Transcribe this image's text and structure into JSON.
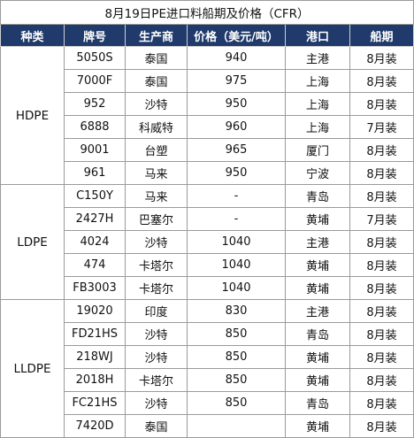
{
  "title": "8月19日PE进口料船期及价格（CFR）",
  "headers": [
    "种类",
    "牌号",
    "生产商",
    "价格（美元/吨）",
    "港口",
    "船期"
  ],
  "groups": [
    {
      "category": "HDPE",
      "rows": [
        {
          "grade": "5050S",
          "producer": "泰国",
          "price": "940",
          "port": "主港",
          "shipment": "8月装"
        },
        {
          "grade": "7000F",
          "producer": "泰国",
          "price": "975",
          "port": "上海",
          "shipment": "8月装"
        },
        {
          "grade": "952",
          "producer": "沙特",
          "price": "950",
          "port": "上海",
          "shipment": "8月装"
        },
        {
          "grade": "6888",
          "producer": "科威特",
          "price": "960",
          "port": "上海",
          "shipment": "7月装"
        },
        {
          "grade": "9001",
          "producer": "台塑",
          "price": "965",
          "port": "厦门",
          "shipment": "8月装"
        },
        {
          "grade": "961",
          "producer": "马来",
          "price": "950",
          "port": "宁波",
          "shipment": "8月装"
        }
      ]
    },
    {
      "category": "LDPE",
      "rows": [
        {
          "grade": "C150Y",
          "producer": "马来",
          "price": "-",
          "port": "青岛",
          "shipment": "8月装"
        },
        {
          "grade": "2427H",
          "producer": "巴塞尔",
          "price": "-",
          "port": "黄埔",
          "shipment": "7月装"
        },
        {
          "grade": "4024",
          "producer": "沙特",
          "price": "1040",
          "port": "主港",
          "shipment": "8月装"
        },
        {
          "grade": "474",
          "producer": "卡塔尔",
          "price": "1040",
          "port": "黄埔",
          "shipment": "8月装"
        },
        {
          "grade": "FB3003",
          "producer": "卡塔尔",
          "price": "1040",
          "port": "黄埔",
          "shipment": "8月装"
        }
      ]
    },
    {
      "category": "LLDPE",
      "rows": [
        {
          "grade": "19020",
          "producer": "印度",
          "price": "830",
          "port": "主港",
          "shipment": "8月装"
        },
        {
          "grade": "FD21HS",
          "producer": "沙特",
          "price": "850",
          "port": "青岛",
          "shipment": "8月装"
        },
        {
          "grade": "218WJ",
          "producer": "沙特",
          "price": "850",
          "port": "黄埔",
          "shipment": "8月装"
        },
        {
          "grade": "2018H",
          "producer": "卡塔尔",
          "price": "850",
          "port": "黄埔",
          "shipment": "8月装"
        },
        {
          "grade": "FC21HS",
          "producer": "沙特",
          "price": "850",
          "port": "青岛",
          "shipment": "8月装"
        },
        {
          "grade": "7420D",
          "producer": "泰国",
          "price": "",
          "port": "黄埔",
          "shipment": "8月装"
        }
      ]
    }
  ]
}
